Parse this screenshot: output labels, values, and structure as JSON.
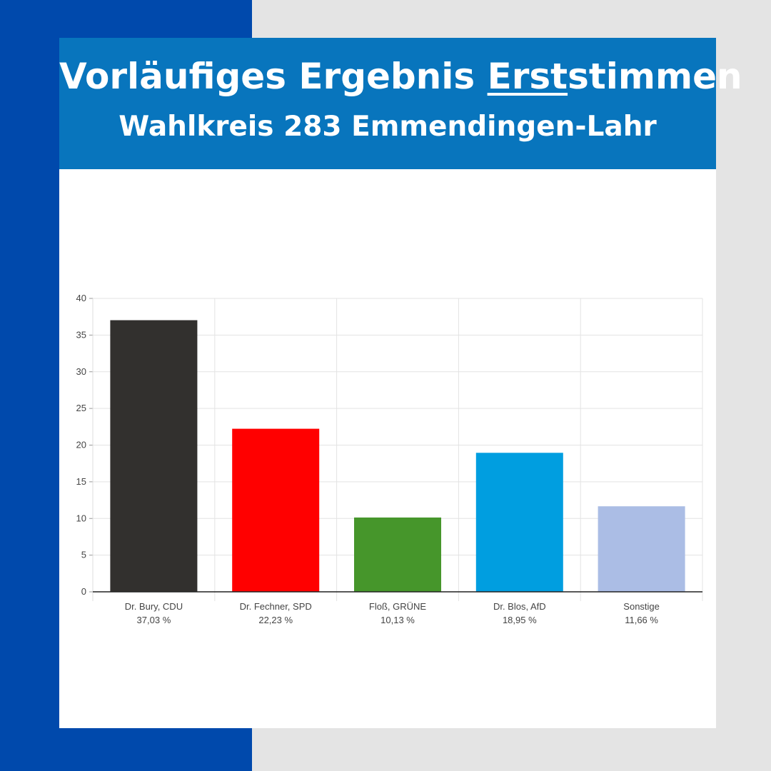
{
  "header": {
    "title_part1": "Vorläufiges Ergebnis ",
    "title_underlined": "Erst",
    "title_part2": "stimmen",
    "subtitle": "Wahlkreis 283 Emmendingen-Lahr"
  },
  "colors": {
    "background_left": "#0049ac",
    "background_right": "#e4e4e4",
    "header": "#0875bd"
  },
  "chart_data": {
    "type": "bar",
    "title": "Vorläufiges Ergebnis Erststimmen",
    "xlabel": "",
    "ylabel": "",
    "ylim": [
      0,
      40
    ],
    "yticks": [
      0,
      5,
      10,
      15,
      20,
      25,
      30,
      35,
      40
    ],
    "grid": true,
    "categories": [
      "Dr. Bury, CDU",
      "Dr. Fechner, SPD",
      "Floß, GRÜNE",
      "Dr. Blos, AfD",
      "Sonstige"
    ],
    "value_labels": [
      "37,03 %",
      "22,23 %",
      "10,13 %",
      "18,95 %",
      "11,66 %"
    ],
    "values": [
      37.03,
      22.23,
      10.13,
      18.95,
      11.66
    ],
    "colors": [
      "#32302e",
      "#ff0000",
      "#46962b",
      "#009ee0",
      "#abbde5"
    ]
  }
}
